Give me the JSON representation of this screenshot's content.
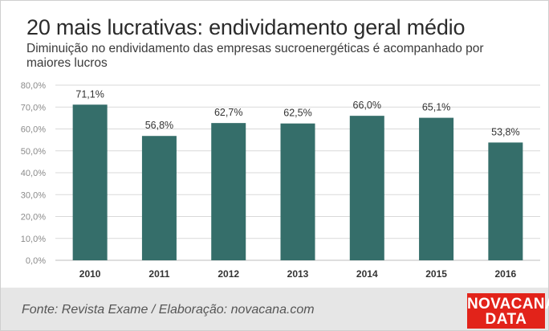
{
  "header": {
    "title": "20 mais lucrativas: endividamento geral médio",
    "subtitle": "Diminuição no endividamento das empresas sucroenergéticas é acompanhado por maiores lucros"
  },
  "footer": {
    "source": "Fonte: Revista Exame / Elaboração: novacana.com",
    "logo_line1": "NOVACANA",
    "logo_line2": "DATA"
  },
  "chart_data": {
    "type": "bar",
    "title": "20 mais lucrativas: endividamento geral médio",
    "subtitle": "Diminuição no endividamento das empresas sucroenergéticas é acompanhado por maiores lucros",
    "categories": [
      "2010",
      "2011",
      "2012",
      "2013",
      "2014",
      "2015",
      "2016"
    ],
    "values": [
      71.1,
      56.8,
      62.7,
      62.5,
      66.0,
      65.1,
      53.8
    ],
    "data_labels": [
      "71,1%",
      "56,8%",
      "62,7%",
      "62,5%",
      "66,0%",
      "65,1%",
      "53,8%"
    ],
    "y_ticks": [
      0,
      10,
      20,
      30,
      40,
      50,
      60,
      70,
      80
    ],
    "y_tick_labels": [
      "0,0%",
      "10,0%",
      "20,0%",
      "30,0%",
      "40,0%",
      "50,0%",
      "60,0%",
      "70,0%",
      "80,0%"
    ],
    "ylim": [
      0,
      80
    ],
    "grid": true,
    "bar_color": "#356e6a",
    "grid_color": "#d9d9d9"
  }
}
